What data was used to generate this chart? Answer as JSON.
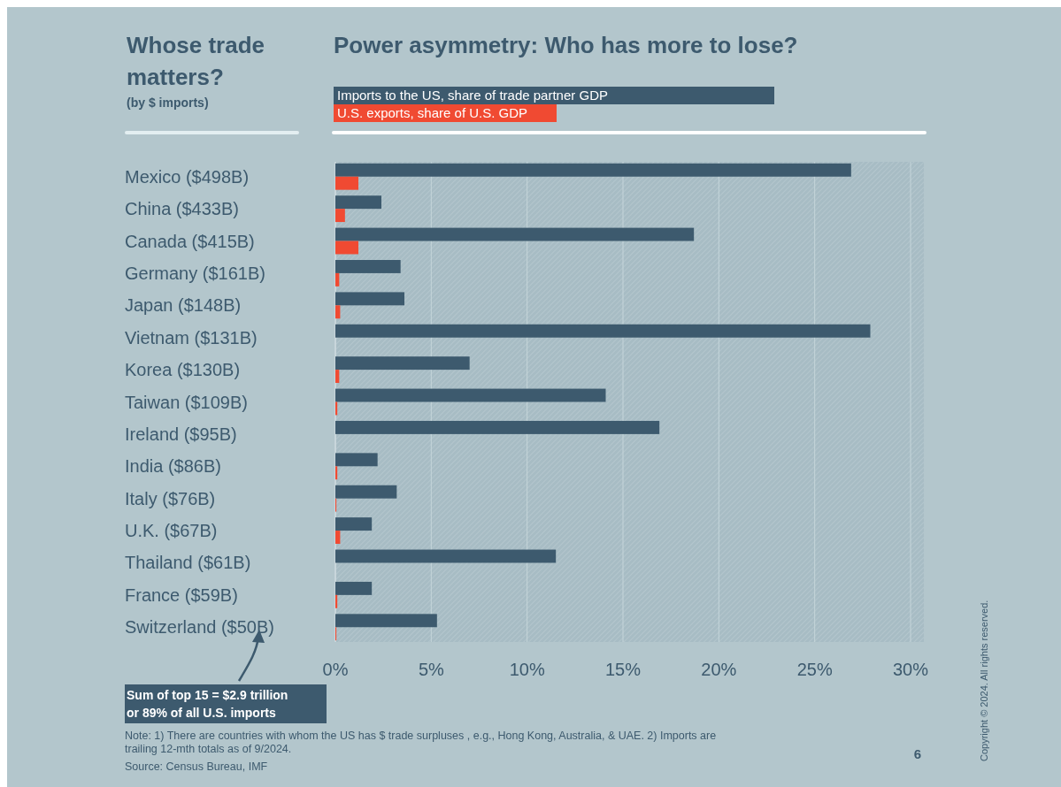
{
  "chart_data": {
    "type": "bar",
    "orientation": "horizontal",
    "title": "Power asymmetry: Who has more to lose?",
    "categories": [
      "Mexico ($498B)",
      "China ($433B)",
      "Canada ($415B)",
      "Germany ($161B)",
      "Japan ($148B)",
      "Vietnam ($131B)",
      "Korea ($130B)",
      "Taiwan ($109B)",
      "Ireland ($95B)",
      "India ($86B)",
      "Italy ($76B)",
      "U.K. ($67B)",
      "Thailand ($61B)",
      "France ($59B)",
      "Switzerland ($50B)"
    ],
    "series": [
      {
        "name": "Imports to the US, share of trade partner GDP",
        "color": "#3d5a6e",
        "values": [
          26.9,
          2.4,
          18.7,
          3.4,
          3.6,
          27.9,
          7.0,
          14.1,
          16.9,
          2.2,
          3.2,
          1.9,
          11.5,
          1.9,
          5.3
        ]
      },
      {
        "name": "U.S. exports, share of U.S. GDP",
        "color": "#f04a32",
        "values": [
          1.2,
          0.5,
          1.2,
          0.2,
          0.25,
          0,
          0.2,
          0.1,
          0,
          0.1,
          0.05,
          0.25,
          0,
          0.1,
          0.05
        ]
      }
    ],
    "xlim": [
      0,
      30
    ],
    "xticks": [
      {
        "value": 0,
        "label": "0%"
      },
      {
        "value": 5,
        "label": "5%"
      },
      {
        "value": 10,
        "label": "10%"
      },
      {
        "value": 15,
        "label": "15%"
      },
      {
        "value": 20,
        "label": "20%"
      },
      {
        "value": 25,
        "label": "25%"
      },
      {
        "value": 30,
        "label": "30%"
      }
    ],
    "grid": "x",
    "legend": "top",
    "annotations": [
      "Whose trade matters?",
      "(by $ imports)",
      "Sum of top 15 = $2.9 trillion or 89% of all U.S. imports",
      "Note: 1) There are countries with whom the US has $ trade surpluses , e.g.,  Hong Kong, Australia, & UAE. 2) Imports are trailing 12-mth totals as of 9/2024.",
      "Source: Census Bureau, IMF",
      "6",
      "Copyright © 2024. All rights reserved."
    ]
  }
}
